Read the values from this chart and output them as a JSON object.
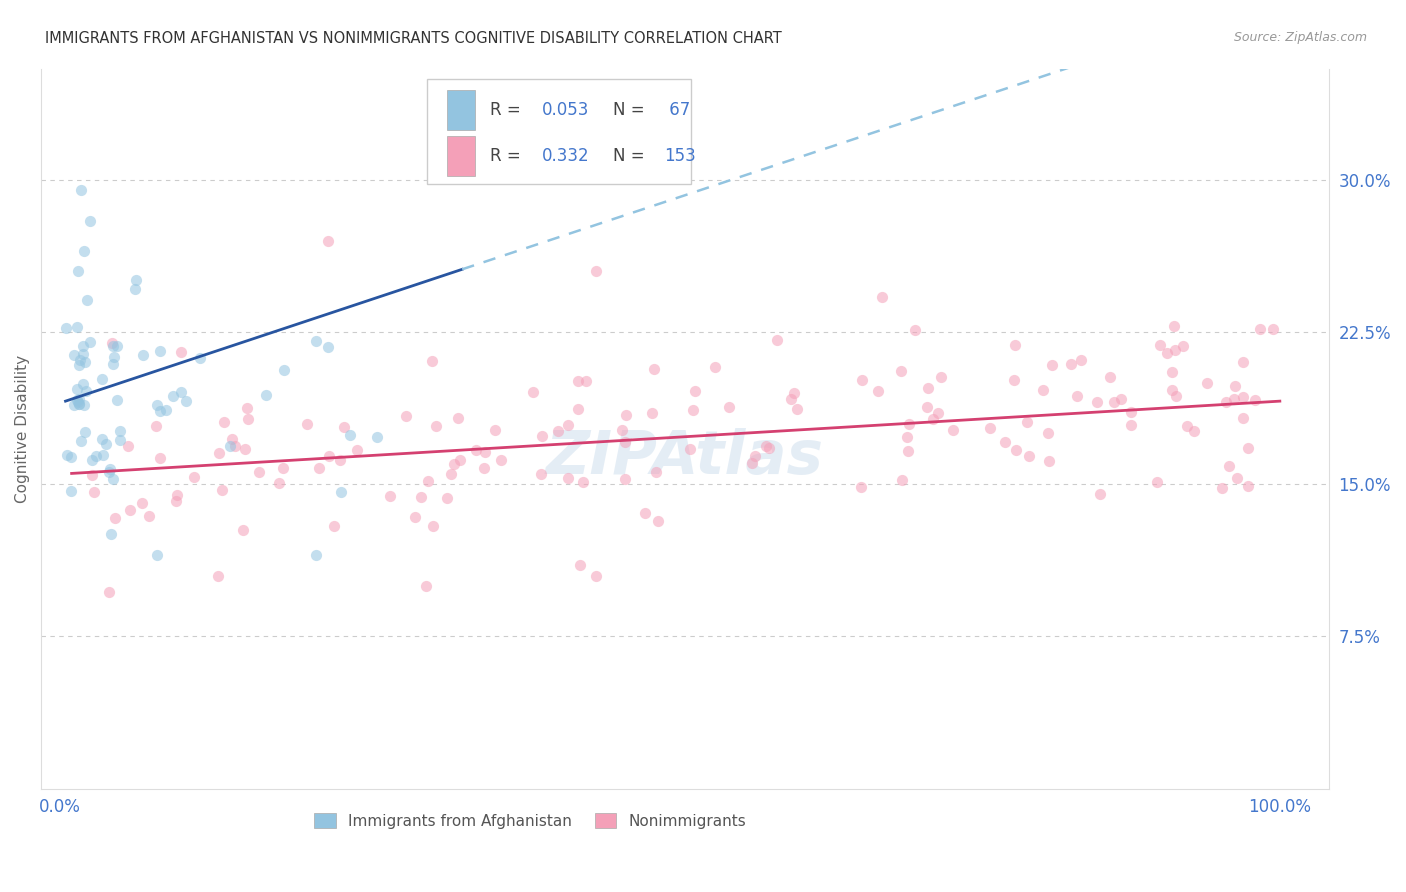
{
  "title": "IMMIGRANTS FROM AFGHANISTAN VS NONIMMIGRANTS COGNITIVE DISABILITY CORRELATION CHART",
  "source": "Source: ZipAtlas.com",
  "ylabel": "Cognitive Disability",
  "right_yticks": [
    "30.0%",
    "22.5%",
    "15.0%",
    "7.5%"
  ],
  "right_ytick_vals": [
    0.3,
    0.225,
    0.15,
    0.075
  ],
  "blue_color": "#93C4E0",
  "pink_color": "#F4A0B8",
  "blue_line_color": "#2855A0",
  "pink_line_color": "#D44070",
  "blue_dashed_color": "#93C4E0",
  "title_color": "#333333",
  "source_color": "#999999",
  "axis_label_color": "#4477CC",
  "legend_value_color": "#4477CC",
  "ylabel_color": "#666666",
  "background_color": "#ffffff",
  "grid_color": "#cccccc",
  "scatter_alpha": 0.55,
  "scatter_size": 65,
  "legend_box_color": "#ffffff",
  "legend_box_edge": "#cccccc"
}
